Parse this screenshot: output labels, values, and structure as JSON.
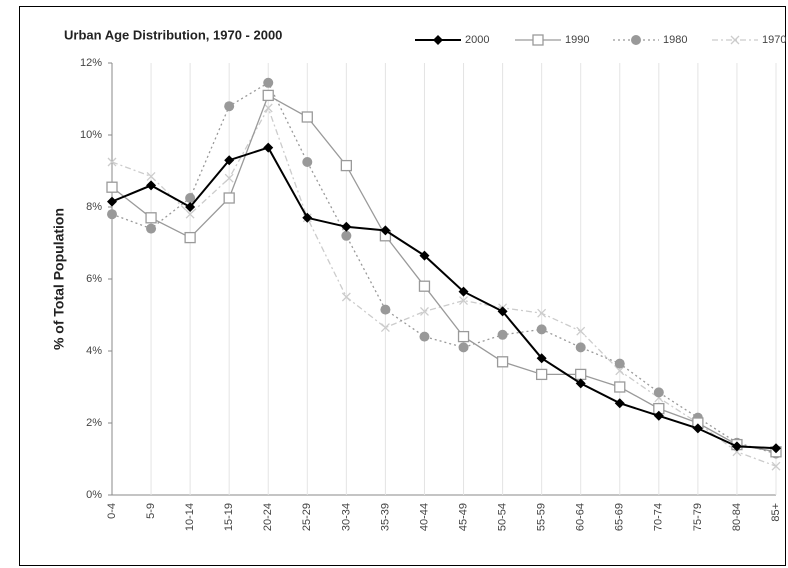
{
  "chart_data": {
    "type": "line",
    "title": "Urban Age Distribution, 1970 - 2000",
    "y_label": "% of Total Population",
    "categories": [
      "0-4",
      "5-9",
      "10-14",
      "15-19",
      "20-24",
      "25-29",
      "30-34",
      "35-39",
      "40-44",
      "45-49",
      "50-54",
      "55-59",
      "60-64",
      "65-69",
      "70-74",
      "75-79",
      "80-84",
      "85+"
    ],
    "series": [
      {
        "name": "2000",
        "color": "#000000",
        "marker": "diamond",
        "dash": "solid",
        "values": [
          8.15,
          8.6,
          8.0,
          9.3,
          9.65,
          7.7,
          7.45,
          7.35,
          6.65,
          5.65,
          5.1,
          3.8,
          3.1,
          2.55,
          2.2,
          1.85,
          1.35,
          1.3
        ]
      },
      {
        "name": "1990",
        "color": "#9a9a9a",
        "marker": "square",
        "dash": "solid",
        "values": [
          8.55,
          7.7,
          7.15,
          8.25,
          11.1,
          10.5,
          9.15,
          7.2,
          5.8,
          4.4,
          3.7,
          3.35,
          3.35,
          3.0,
          2.4,
          2.0,
          1.4,
          1.2
        ]
      },
      {
        "name": "1980",
        "color": "#999999",
        "marker": "circle",
        "dash": "dotted",
        "values": [
          7.8,
          7.4,
          8.25,
          10.8,
          11.45,
          9.25,
          7.2,
          5.15,
          4.4,
          4.1,
          4.45,
          4.6,
          4.1,
          3.65,
          2.85,
          2.15,
          1.45,
          1.15
        ]
      },
      {
        "name": "1970",
        "color": "#cccccc",
        "marker": "x",
        "dash": "dashdot",
        "values": [
          9.25,
          8.85,
          7.8,
          8.8,
          10.75,
          7.7,
          5.5,
          4.65,
          5.1,
          5.4,
          5.2,
          5.05,
          4.55,
          3.45,
          2.7,
          2.0,
          1.2,
          0.8
        ]
      }
    ],
    "ylim": [
      0,
      12
    ],
    "yticks": [
      {
        "value": 0,
        "label": "0%"
      },
      {
        "value": 2,
        "label": "2%"
      },
      {
        "value": 4,
        "label": "4%"
      },
      {
        "value": 6,
        "label": "6%"
      },
      {
        "value": 8,
        "label": "8%"
      },
      {
        "value": 10,
        "label": "10%"
      },
      {
        "value": 12,
        "label": "12%"
      }
    ],
    "grid": "vertical",
    "legend": "top"
  }
}
